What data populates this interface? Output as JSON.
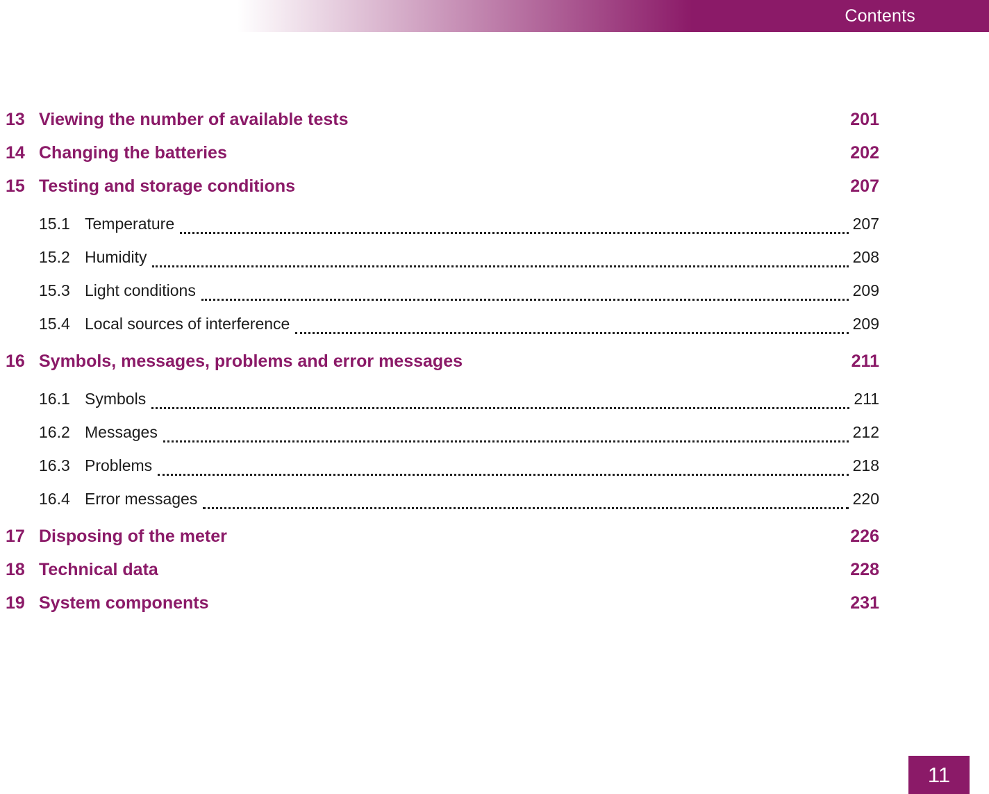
{
  "header": {
    "title": "Contents"
  },
  "colors": {
    "accent": "#8b1a68",
    "ink": "#1c1c1c"
  },
  "toc": {
    "entries": [
      {
        "number": "13",
        "title": "Viewing the number of available tests",
        "page": "201",
        "level": 1
      },
      {
        "number": "14",
        "title": "Changing the batteries",
        "page": "202",
        "level": 1
      },
      {
        "number": "15",
        "title": "Testing and storage conditions",
        "page": "207",
        "level": 1
      },
      {
        "number": "15.1",
        "title": "Temperature",
        "page": "207",
        "level": 2
      },
      {
        "number": "15.2",
        "title": "Humidity",
        "page": "208",
        "level": 2
      },
      {
        "number": "15.3",
        "title": "Light conditions",
        "page": "209",
        "level": 2
      },
      {
        "number": "15.4",
        "title": "Local sources of interference",
        "page": "209",
        "level": 2
      },
      {
        "number": "16",
        "title": "Symbols, messages, problems and error messages",
        "page": "211",
        "level": 1
      },
      {
        "number": "16.1",
        "title": "Symbols",
        "page": "211",
        "level": 2
      },
      {
        "number": "16.2",
        "title": "Messages",
        "page": "212",
        "level": 2
      },
      {
        "number": "16.3",
        "title": "Problems",
        "page": "218",
        "level": 2
      },
      {
        "number": "16.4",
        "title": "Error messages",
        "page": "220",
        "level": 2
      },
      {
        "number": "17",
        "title": "Disposing of the meter",
        "page": "226",
        "level": 1
      },
      {
        "number": "18",
        "title": "Technical data",
        "page": "228",
        "level": 1
      },
      {
        "number": "19",
        "title": "System components",
        "page": "231",
        "level": 1
      }
    ]
  },
  "footer": {
    "page_number": "11"
  }
}
